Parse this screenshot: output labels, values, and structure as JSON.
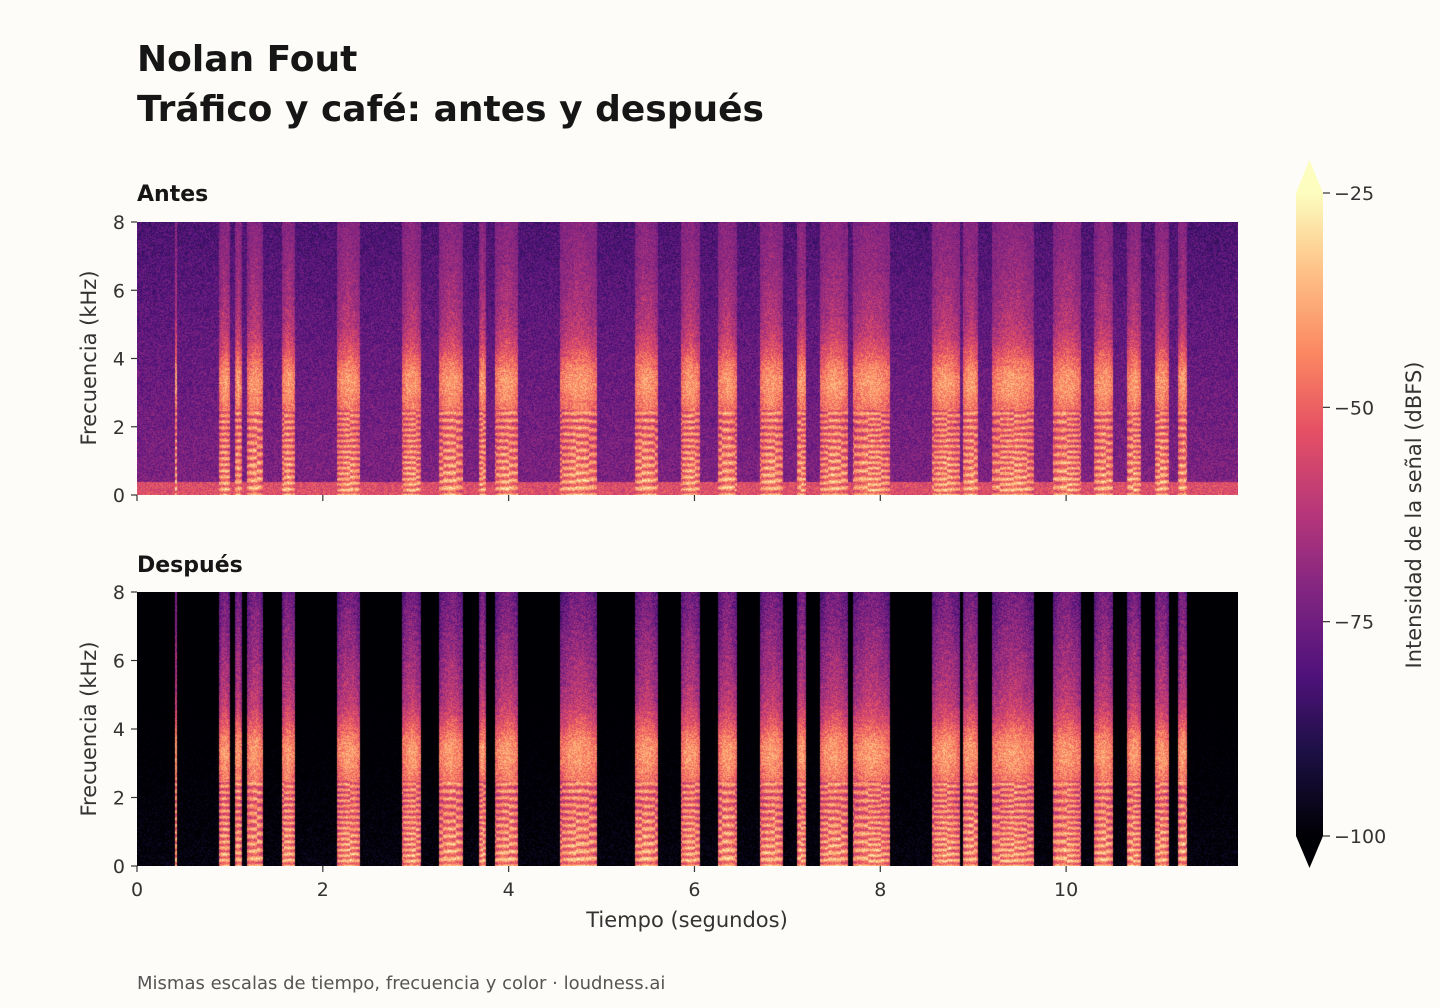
{
  "header": {
    "title": "Nolan Fout",
    "subtitle": "Tráfico y café: antes y después"
  },
  "footer": {
    "note": "Mismas escalas de tiempo, frecuencia y color  ·  loudness.ai"
  },
  "chart_data": [
    {
      "type": "heatmap",
      "title": "Antes",
      "xlabel": "",
      "ylabel": "Frecuencia (kHz)",
      "xlim": [
        0,
        11.85
      ],
      "ylim": [
        0,
        8
      ],
      "xticks": [
        0,
        2,
        4,
        6,
        8,
        10
      ],
      "yticks": [
        0,
        2,
        4,
        6,
        8
      ],
      "noise_floor_dbfs": -72,
      "description_of_content": "speech spectrogram with broadband background noise"
    },
    {
      "type": "heatmap",
      "title": "Después",
      "xlabel": "Tiempo (segundos)",
      "ylabel": "Frecuencia (kHz)",
      "xlim": [
        0,
        11.85
      ],
      "ylim": [
        0,
        8
      ],
      "xticks": [
        0,
        2,
        4,
        6,
        8,
        10
      ],
      "yticks": [
        0,
        2,
        4,
        6,
        8
      ],
      "noise_floor_dbfs": -100,
      "description_of_content": "same speech with background noise removed"
    }
  ],
  "colorbar": {
    "label": "Intensidad de la señal (dBFS)",
    "range": [
      -100,
      -25
    ],
    "ticks": [
      -25,
      -50,
      -75,
      -100
    ],
    "colormap": "magma",
    "extend": "both"
  },
  "segments": [
    [
      0.4,
      0.43
    ],
    [
      0.88,
      1.0
    ],
    [
      1.05,
      1.12
    ],
    [
      1.18,
      1.35
    ],
    [
      1.55,
      1.7
    ],
    [
      2.15,
      2.4
    ],
    [
      2.85,
      3.05
    ],
    [
      3.25,
      3.5
    ],
    [
      3.68,
      3.75
    ],
    [
      3.85,
      4.1
    ],
    [
      4.55,
      4.95
    ],
    [
      5.35,
      5.6
    ],
    [
      5.85,
      6.05
    ],
    [
      6.25,
      6.45
    ],
    [
      6.7,
      6.95
    ],
    [
      7.1,
      7.2
    ],
    [
      7.35,
      7.65
    ],
    [
      7.7,
      8.1
    ],
    [
      8.55,
      8.85
    ],
    [
      8.88,
      9.05
    ],
    [
      9.2,
      9.65
    ],
    [
      9.85,
      10.15
    ],
    [
      10.3,
      10.5
    ],
    [
      10.65,
      10.8
    ],
    [
      10.95,
      11.1
    ],
    [
      11.2,
      11.3
    ]
  ]
}
